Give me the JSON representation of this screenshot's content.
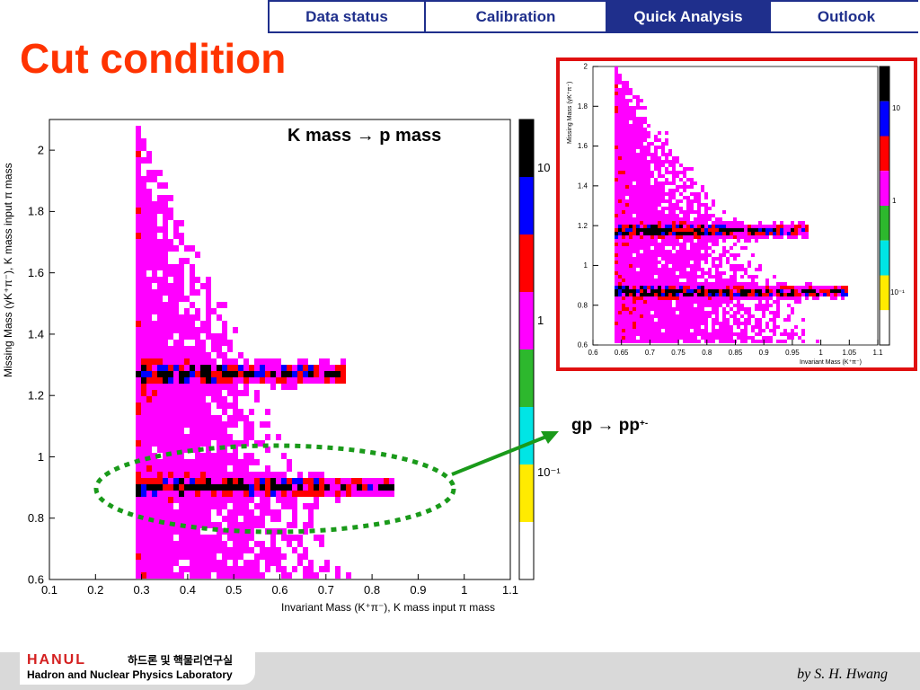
{
  "nav": {
    "tabs": [
      {
        "label": "Data status",
        "active": false
      },
      {
        "label": "Calibration",
        "active": false
      },
      {
        "label": "Quick Analysis",
        "active": true
      },
      {
        "label": "Outlook",
        "active": false
      }
    ]
  },
  "title": "Cut condition",
  "main_plot": {
    "annotation": "K mass → p mass",
    "xlabel": "Invariant Mass (K⁺π⁻), K mass input π mass",
    "ylabel": "Missing Mass (γK⁺π⁻), K mass input π mass",
    "x_ticks": [
      "0.1",
      "0.2",
      "0.3",
      "0.4",
      "0.5",
      "0.6",
      "0.7",
      "0.8",
      "0.9",
      "1",
      "1.1"
    ],
    "y_ticks": [
      "0.6",
      "0.8",
      "1",
      "1.2",
      "1.4",
      "1.6",
      "1.8",
      "2"
    ],
    "scale_labels": [
      "10",
      "1",
      "10⁻¹"
    ]
  },
  "inset_plot": {
    "xlabel": "Invariant Mass (K⁺π⁻)",
    "ylabel": "Missing Mass (γK⁺π⁻)",
    "x_ticks": [
      "0.6",
      "0.65",
      "0.7",
      "0.75",
      "0.8",
      "0.85",
      "0.9",
      "0.95",
      "1",
      "1.05",
      "1.1"
    ],
    "y_ticks": [
      "0.6",
      "0.8",
      "1",
      "1.2",
      "1.4",
      "1.6",
      "1.8",
      "2"
    ],
    "scale_labels": [
      "10",
      "1",
      "10⁻¹"
    ]
  },
  "reaction": {
    "text_main": "gp → pp",
    "super1": "+",
    "super2": "-"
  },
  "chart_data": [
    {
      "type": "heatmap",
      "title": "",
      "xlabel": "Invariant Mass (K⁺π⁻), K mass input π mass",
      "ylabel": "Missing Mass (γK⁺π⁻), K mass input π mass",
      "xlim": [
        0.1,
        1.1
      ],
      "ylim": [
        0.6,
        2.1
      ],
      "bands": [
        {
          "y": 0.9,
          "x_range": [
            0.29,
            0.85
          ],
          "density": "high"
        },
        {
          "y": 1.27,
          "x_range": [
            0.29,
            0.75
          ],
          "density": "medium"
        }
      ],
      "color_scale": [
        "#ffffff",
        "#ffeb00",
        "#00e5e5",
        "#2db82d",
        "#ff00ff",
        "#ff0000",
        "#0000ff",
        "#000000"
      ]
    },
    {
      "type": "heatmap",
      "title": "",
      "xlabel": "Invariant Mass (K⁺π⁻)",
      "ylabel": "Missing Mass (γK⁺π⁻)",
      "xlim": [
        0.6,
        1.1
      ],
      "ylim": [
        0.6,
        2.0
      ],
      "bands": [
        {
          "y": 0.86,
          "x_range": [
            0.64,
            1.05
          ],
          "density": "high"
        },
        {
          "y": 1.17,
          "x_range": [
            0.64,
            0.98
          ],
          "density": "medium"
        }
      ]
    }
  ],
  "footer": {
    "logo_text": "HANUL",
    "lab_korean": "하드론 및 핵물리연구실",
    "lab_english": "Hadron and Nuclear Physics Laboratory",
    "author": "by S. H. Hwang"
  },
  "colors": {
    "title": "#ff3300",
    "nav": "#1f2f8c",
    "inset_border": "#e01010",
    "ellipse": "#1a9a1a",
    "arrow": "#1a9a1a"
  }
}
